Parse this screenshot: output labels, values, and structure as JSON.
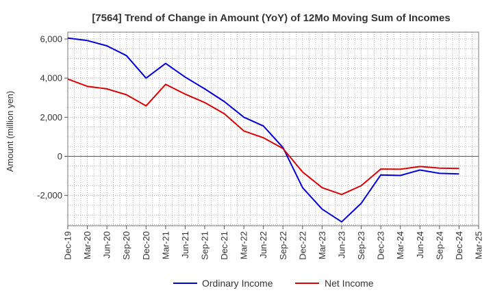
{
  "chart_data": {
    "type": "line",
    "title": "[7564]  Trend of Change in Amount (YoY) of 12Mo Moving Sum of Incomes",
    "xlabel": "",
    "ylabel": "Amount (million yen)",
    "ylim": [
      -3550,
      6350
    ],
    "yticks": [
      -2000,
      0,
      2000,
      4000,
      6000
    ],
    "ytick_labels": [
      "-2,000",
      "0",
      "2,000",
      "4,000",
      "6,000"
    ],
    "x": [
      "Dec-19",
      "Mar-20",
      "Jun-20",
      "Sep-20",
      "Dec-20",
      "Mar-21",
      "Jun-21",
      "Sep-21",
      "Dec-21",
      "Mar-22",
      "Jun-22",
      "Sep-22",
      "Dec-22",
      "Mar-23",
      "Jun-23",
      "Sep-23",
      "Dec-23",
      "Mar-24",
      "Jun-24",
      "Sep-24",
      "Dec-24",
      "Mar-25"
    ],
    "xtick_labels": [
      "Dec-19",
      "Mar-20",
      "Jun-20",
      "Sep-20",
      "Dec-20",
      "Mar-21",
      "Jun-21",
      "Sep-21",
      "Dec-21",
      "Mar-22",
      "Jun-22",
      "Sep-22",
      "Dec-22",
      "Mar-23",
      "Jun-23",
      "Sep-23",
      "Dec-23",
      "Mar-24",
      "Jun-24",
      "Sep-24",
      "Dec-24",
      "Mar-25"
    ],
    "grid": true,
    "legend_position": "bottom",
    "series": [
      {
        "name": "Ordinary Income",
        "color": "#0000dd",
        "values": [
          6050,
          5920,
          5650,
          5150,
          4000,
          4750,
          4050,
          3450,
          2800,
          2000,
          1550,
          450,
          -1600,
          -2700,
          -3350,
          -2400,
          -950,
          -980,
          -700,
          -870,
          -900,
          null
        ]
      },
      {
        "name": "Net Income",
        "color": "#dd0000",
        "values": [
          3950,
          3580,
          3450,
          3150,
          2580,
          3680,
          3180,
          2750,
          2180,
          1300,
          950,
          400,
          -800,
          -1600,
          -1950,
          -1500,
          -650,
          -660,
          -520,
          -600,
          -620,
          null
        ]
      }
    ]
  }
}
